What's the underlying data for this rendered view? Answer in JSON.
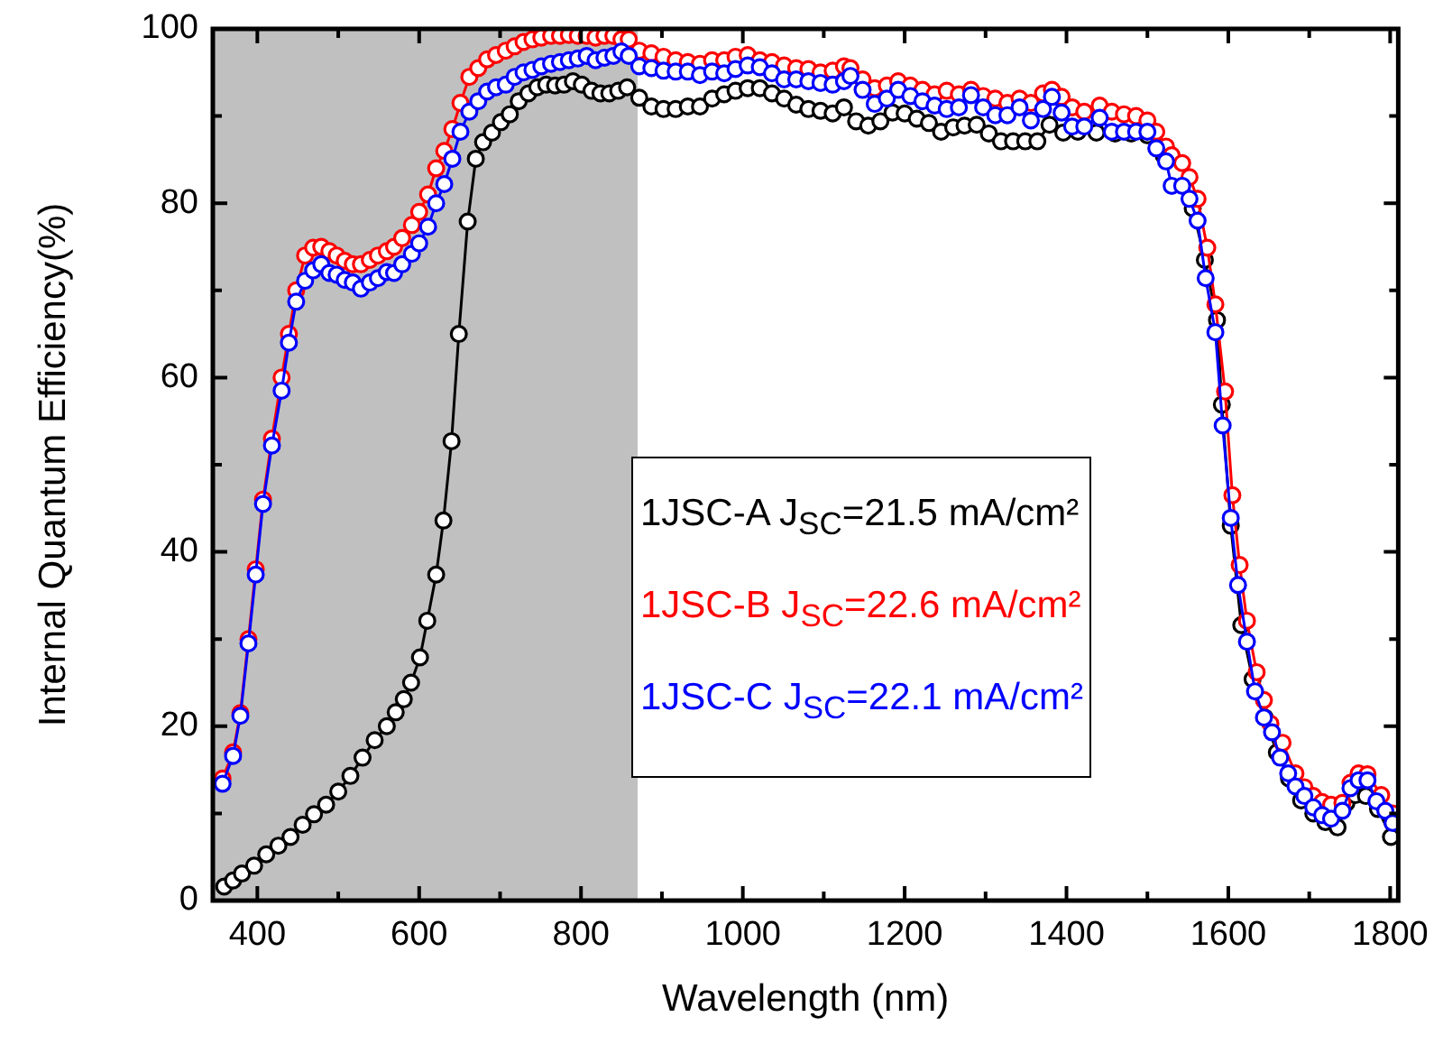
{
  "chart_data": {
    "type": "line",
    "xlabel": "Wavelength (nm)",
    "ylabel": "Internal Quantum Efficiency(%)",
    "xlim": [
      345,
      1810
    ],
    "ylim": [
      0,
      100
    ],
    "xticks": [
      400,
      {
        "value": 500,
        "label": null
      },
      600,
      {
        "value": 700,
        "label": null
      },
      800,
      {
        "value": 900,
        "label": null
      },
      1000,
      {
        "value": 1100,
        "label": null
      },
      1200,
      {
        "value": 1300,
        "label": null
      },
      1400,
      {
        "value": 1500,
        "label": null
      },
      1600,
      {
        "value": 1700,
        "label": null
      },
      1800
    ],
    "yticks": [
      0,
      {
        "value": 10,
        "label": null
      },
      20,
      {
        "value": 30,
        "label": null
      },
      40,
      {
        "value": 50,
        "label": null
      },
      60,
      {
        "value": 70,
        "label": null
      },
      80,
      {
        "value": 90,
        "label": null
      },
      100
    ],
    "marker": "circle",
    "line_style": "solid",
    "legend": "right",
    "bands": [
      {
        "axis": "x",
        "from": 345,
        "to": 870,
        "color": "#c0c0c0"
      }
    ],
    "series": [
      {
        "name": "1JSC-A J$_{SC}$=21.5 mA/cm²",
        "color": "#000000",
        "x": [
          359,
          370,
          381,
          396,
          411,
          426,
          441,
          456,
          470,
          485,
          500,
          515,
          530,
          545,
          560,
          571,
          581,
          590,
          601,
          610,
          621,
          630,
          640,
          649,
          660,
          670,
          679,
          690,
          701,
          712,
          723,
          735,
          746,
          757,
          768,
          779,
          790,
          801,
          813,
          824,
          835,
          846,
          857,
          872,
          887,
          902,
          917,
          932,
          947,
          962,
          977,
          991,
          1006,
          1021,
          1036,
          1051,
          1066,
          1081,
          1096,
          1111,
          1125,
          1140,
          1155,
          1170,
          1185,
          1200,
          1215,
          1230,
          1245,
          1260,
          1274,
          1289,
          1304,
          1319,
          1334,
          1349,
          1364,
          1379,
          1396,
          1414,
          1437,
          1460,
          1480,
          1500,
          1520,
          1540,
          1556,
          1571,
          1586,
          1592,
          1603,
          1616,
          1630,
          1645,
          1660,
          1675,
          1690,
          1705,
          1720,
          1735,
          1746,
          1757,
          1770,
          1785,
          1801
        ],
        "values": [
          1.6,
          2.3,
          3.1,
          4,
          5.3,
          6.3,
          7.3,
          8.7,
          9.9,
          11,
          12.5,
          14.3,
          16.4,
          18.4,
          20,
          21.6,
          23.1,
          25,
          27.9,
          32.1,
          37.4,
          43.6,
          52.7,
          65,
          77.9,
          85.1,
          87,
          88.1,
          89.3,
          90.2,
          91.7,
          92.6,
          93.3,
          93.6,
          93.5,
          93.6,
          94,
          93.6,
          92.9,
          92.6,
          92.6,
          92.9,
          93.3,
          92.1,
          91.1,
          90.8,
          90.8,
          91.1,
          91.1,
          92,
          92.5,
          92.9,
          93.2,
          93.2,
          92.6,
          92,
          91.3,
          90.8,
          90.6,
          90.3,
          91,
          89.4,
          88.9,
          89.4,
          90.4,
          90.3,
          89.7,
          89.2,
          88.2,
          88.7,
          88.9,
          89,
          88,
          87.1,
          87.1,
          87.1,
          87.1,
          89,
          88.1,
          88.2,
          88.1,
          88,
          88,
          87.8,
          85.5,
          null,
          79.4,
          73.5,
          66.6,
          56.9,
          43,
          31.6,
          25.4,
          21,
          17,
          14,
          11.5,
          10,
          9,
          8.4,
          11.2,
          12.1,
          12,
          10.5,
          7.3
        ]
      },
      {
        "name": "1JSC-B J$_{SC}$=22.6 mA/cm²",
        "color": "#ff0000",
        "x": [
          357,
          370,
          379,
          389,
          398,
          407,
          418,
          430,
          439,
          448,
          459,
          469,
          479,
          489,
          498,
          508,
          518,
          528,
          539,
          549,
          560,
          569,
          579,
          591,
          600,
          611,
          621,
          631,
          641,
          651,
          662,
          673,
          684,
          695,
          707,
          718,
          729,
          740,
          751,
          763,
          774,
          785,
          796,
          807,
          818,
          829,
          840,
          850,
          859,
          872,
          887,
          902,
          917,
          932,
          947,
          962,
          977,
          991,
          1006,
          1021,
          1036,
          1051,
          1066,
          1081,
          1096,
          1111,
          1125,
          1133,
          1148,
          1163,
          1178,
          1192,
          1207,
          1222,
          1237,
          1252,
          1267,
          1282,
          1297,
          1312,
          1327,
          1342,
          1356,
          1371,
          1382,
          1394,
          1407,
          1422,
          1441,
          1456,
          1471,
          1486,
          1500,
          1511,
          1523,
          1530,
          1543,
          1552,
          1562,
          1574,
          1584,
          1596,
          1605,
          1614,
          1623,
          1635,
          1644,
          1652,
          1667,
          1683,
          1694,
          1705,
          1716,
          1727,
          1741,
          1751,
          1761,
          1772,
          1789,
          1803
        ],
        "values": [
          14,
          17,
          21.5,
          30,
          38,
          46,
          53,
          60,
          65,
          70,
          74,
          74.9,
          75,
          74.5,
          74,
          73.4,
          73,
          73,
          73.5,
          74,
          74.5,
          75,
          76,
          77.5,
          79,
          81,
          84,
          86,
          88.5,
          91.5,
          94.5,
          95.5,
          96.5,
          97,
          97.5,
          98,
          98.5,
          98.8,
          99,
          99.2,
          99.2,
          99.3,
          99.2,
          99.2,
          99,
          99.2,
          99.2,
          98.8,
          98.8,
          97.5,
          97.2,
          96.8,
          96.4,
          96.2,
          96,
          96.4,
          96.4,
          96.8,
          97,
          96.4,
          96.2,
          95.8,
          95.5,
          95.4,
          95,
          95.2,
          95.7,
          95.5,
          94.2,
          93.2,
          93.5,
          94,
          93.5,
          93,
          92.5,
          92.9,
          92.5,
          93,
          92.3,
          92,
          91.5,
          92,
          91.5,
          92.6,
          93,
          92.2,
          91,
          90.5,
          91.2,
          90.5,
          90.2,
          90,
          89.5,
          88.2,
          86.5,
          85.5,
          84.6,
          83,
          80.5,
          74.9,
          68.4,
          58.4,
          46.5,
          38.5,
          32.1,
          26.2,
          23,
          20.3,
          18.1,
          14.6,
          13,
          12,
          11.3,
          11,
          11.2,
          13.5,
          14.6,
          14.5,
          12.1,
          10
        ]
      },
      {
        "name": "1JSC-C J$_{SC}$=22.1 mA/cm²",
        "color": "#0000ff",
        "x": [
          357,
          370,
          379,
          389,
          398,
          407,
          418,
          430,
          439,
          448,
          459,
          469,
          479,
          489,
          498,
          508,
          518,
          528,
          539,
          549,
          560,
          569,
          579,
          591,
          600,
          611,
          621,
          631,
          641,
          651,
          662,
          673,
          684,
          695,
          707,
          718,
          729,
          740,
          751,
          763,
          774,
          785,
          796,
          807,
          818,
          829,
          840,
          850,
          859,
          872,
          887,
          902,
          917,
          932,
          947,
          962,
          977,
          991,
          1006,
          1021,
          1036,
          1051,
          1066,
          1081,
          1096,
          1111,
          1125,
          1133,
          1148,
          1163,
          1178,
          1192,
          1207,
          1222,
          1237,
          1252,
          1267,
          1282,
          1297,
          1312,
          1327,
          1342,
          1356,
          1371,
          1382,
          1394,
          1407,
          1422,
          1441,
          1456,
          1471,
          1486,
          1500,
          1511,
          1523,
          1530,
          1543,
          1552,
          1562,
          1572,
          1584,
          1593,
          1603,
          1612,
          1623,
          1633,
          1644,
          1654,
          1664,
          1674,
          1683,
          1694,
          1705,
          1716,
          1727,
          1741,
          1751,
          1761,
          1772,
          1783,
          1794,
          1803
        ],
        "values": [
          13.4,
          16.6,
          21.2,
          29.5,
          37.4,
          45.5,
          52.2,
          58.5,
          64,
          68.7,
          71.1,
          72.3,
          73,
          72,
          71.8,
          71.2,
          70.9,
          70.2,
          70.9,
          71.4,
          72.1,
          72,
          73,
          74.2,
          75.4,
          77.3,
          80,
          82.2,
          85.1,
          88.2,
          90.5,
          91.7,
          92.8,
          93.3,
          93.6,
          94.5,
          95,
          95.3,
          95.7,
          96,
          96.2,
          96.4,
          96.6,
          96.9,
          96.4,
          96.7,
          96.9,
          97.4,
          96.9,
          95.7,
          95.5,
          95.2,
          95.1,
          95.1,
          94.7,
          95.1,
          94.9,
          95.4,
          95.8,
          95.6,
          94.9,
          94.2,
          94.2,
          94,
          93.8,
          93.6,
          94,
          94.6,
          93,
          91.4,
          92,
          93,
          92.3,
          91.7,
          91.2,
          90.8,
          91,
          92.4,
          91,
          90.1,
          90.1,
          91,
          89.5,
          90.8,
          92.2,
          90.4,
          88.8,
          88.8,
          89.8,
          88.2,
          88.2,
          88.2,
          88.2,
          86.3,
          84.8,
          82,
          82,
          80.5,
          78,
          71.4,
          65.2,
          54.5,
          43.9,
          36.2,
          29.7,
          24,
          21,
          19.3,
          16.4,
          14.6,
          13.1,
          12,
          10.7,
          9.8,
          9.4,
          10.3,
          12.9,
          13.8,
          13.8,
          11.4,
          10.3,
          8.9
        ]
      }
    ]
  }
}
